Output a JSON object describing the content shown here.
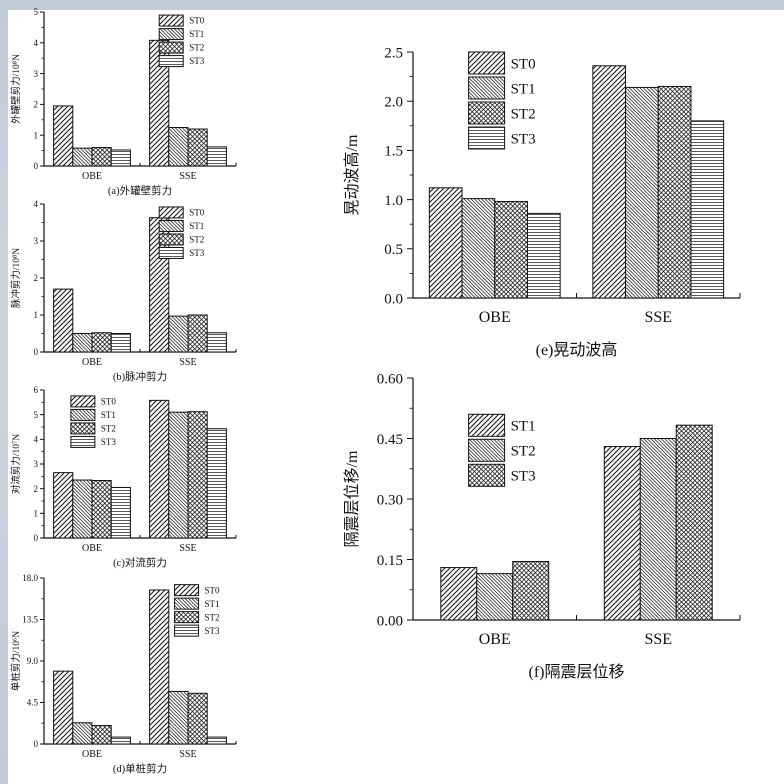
{
  "page": {
    "top_band_color": "#c2ccd9",
    "left_band_color": "#ccd5e0",
    "canvas_color": "#ffffff",
    "ink_color": "#111111"
  },
  "chart_data": [
    {
      "id": "a",
      "type": "bar",
      "caption": "(a)外罐壁剪力",
      "ylabel": "外罐壁剪力/10⁸N",
      "categories": [
        "OBE",
        "SSE"
      ],
      "series": [
        {
          "name": "ST0",
          "values": [
            1.95,
            4.08
          ]
        },
        {
          "name": "ST1",
          "values": [
            0.58,
            1.25
          ]
        },
        {
          "name": "ST2",
          "values": [
            0.6,
            1.2
          ]
        },
        {
          "name": "ST3",
          "values": [
            0.52,
            0.62
          ]
        }
      ],
      "ylim": [
        0,
        5
      ],
      "ytick_values": [
        0,
        1,
        2,
        3,
        4,
        5
      ],
      "ytick_labels": [
        "0",
        "1",
        "2",
        "3",
        "4",
        "5"
      ],
      "legend_pos": {
        "x": 0.6,
        "y": 0.02
      },
      "legend_position_hint": "upper-right-inside",
      "grid": false,
      "hatches": [
        "diag-forward",
        "diag-back",
        "cross",
        "horizontal"
      ]
    },
    {
      "id": "b",
      "type": "bar",
      "caption": "(b)脉冲剪力",
      "ylabel": "脉冲剪力/10⁸N",
      "categories": [
        "OBE",
        "SSE"
      ],
      "series": [
        {
          "name": "ST0",
          "values": [
            1.7,
            3.63
          ]
        },
        {
          "name": "ST1",
          "values": [
            0.5,
            0.97
          ]
        },
        {
          "name": "ST2",
          "values": [
            0.52,
            1.0
          ]
        },
        {
          "name": "ST3",
          "values": [
            0.5,
            0.52
          ]
        }
      ],
      "ylim": [
        0,
        4
      ],
      "ytick_values": [
        0,
        1,
        2,
        3,
        4
      ],
      "ytick_labels": [
        "0",
        "1",
        "2",
        "3",
        "4"
      ],
      "legend_pos": {
        "x": 0.6,
        "y": 0.02
      },
      "legend_position_hint": "upper-right-inside",
      "grid": false,
      "hatches": [
        "diag-forward",
        "diag-back",
        "cross",
        "horizontal"
      ]
    },
    {
      "id": "c",
      "type": "bar",
      "caption": "(c)对流剪力",
      "ylabel": "对流剪力/10⁷N",
      "categories": [
        "OBE",
        "SSE"
      ],
      "series": [
        {
          "name": "ST0",
          "values": [
            2.65,
            5.58
          ]
        },
        {
          "name": "ST1",
          "values": [
            2.35,
            5.1
          ]
        },
        {
          "name": "ST2",
          "values": [
            2.33,
            5.12
          ]
        },
        {
          "name": "ST3",
          "values": [
            2.05,
            4.43
          ]
        }
      ],
      "ylim": [
        0,
        6
      ],
      "ytick_values": [
        0,
        1,
        2,
        3,
        4,
        5,
        6
      ],
      "ytick_labels": [
        "0",
        "1",
        "2",
        "3",
        "4",
        "5",
        "6"
      ],
      "legend_pos": {
        "x": 0.14,
        "y": 0.04
      },
      "legend_position_hint": "upper-left-inside",
      "grid": false,
      "hatches": [
        "diag-forward",
        "diag-back",
        "cross",
        "horizontal"
      ]
    },
    {
      "id": "d",
      "type": "bar",
      "caption": "(d)单桩剪力",
      "ylabel": "单桩剪力/10⁶N",
      "categories": [
        "OBE",
        "SSE"
      ],
      "series": [
        {
          "name": "ST0",
          "values": [
            7.9,
            16.7
          ]
        },
        {
          "name": "ST1",
          "values": [
            2.3,
            5.7
          ]
        },
        {
          "name": "ST2",
          "values": [
            2.0,
            5.5
          ]
        },
        {
          "name": "ST3",
          "values": [
            0.75,
            0.75
          ]
        }
      ],
      "ylim": [
        0,
        18
      ],
      "ytick_values": [
        0,
        4.5,
        9,
        13.5,
        18
      ],
      "ytick_labels": [
        "0",
        "4.5",
        "9.0",
        "13.5",
        "18.0"
      ],
      "legend_pos": {
        "x": 0.68,
        "y": 0.04
      },
      "legend_position_hint": "upper-right-inside",
      "grid": false,
      "hatches": [
        "diag-forward",
        "diag-back",
        "cross",
        "horizontal"
      ]
    },
    {
      "id": "e",
      "type": "bar",
      "caption": "(e)晃动波高",
      "ylabel": "晃动波高/m",
      "categories": [
        "OBE",
        "SSE"
      ],
      "series": [
        {
          "name": "ST0",
          "values": [
            1.12,
            2.36
          ]
        },
        {
          "name": "ST1",
          "values": [
            1.01,
            2.14
          ]
        },
        {
          "name": "ST2",
          "values": [
            0.98,
            2.15
          ]
        },
        {
          "name": "ST3",
          "values": [
            0.86,
            1.8
          ]
        }
      ],
      "ylim": [
        0,
        2.5
      ],
      "ytick_values": [
        0,
        0.5,
        1.0,
        1.5,
        2.0,
        2.5
      ],
      "ytick_labels": [
        "0.0",
        "0.5",
        "1.0",
        "1.5",
        "2.0",
        "2.5"
      ],
      "legend_pos": {
        "x": 0.17,
        "y": 0.0
      },
      "legend_position_hint": "upper-left-inside",
      "grid": false,
      "hatches": [
        "diag-forward",
        "diag-back",
        "cross",
        "horizontal"
      ]
    },
    {
      "id": "f",
      "type": "bar",
      "caption": "(f)隔震层位移",
      "ylabel": "隔震层位移/m",
      "categories": [
        "OBE",
        "SSE"
      ],
      "series": [
        {
          "name": "ST1",
          "values": [
            0.13,
            0.43
          ]
        },
        {
          "name": "ST2",
          "values": [
            0.115,
            0.45
          ]
        },
        {
          "name": "ST3",
          "values": [
            0.145,
            0.483
          ]
        }
      ],
      "ylim": [
        0,
        0.6
      ],
      "ytick_values": [
        0,
        0.15,
        0.3,
        0.45,
        0.6
      ],
      "ytick_labels": [
        "0.00",
        "0.15",
        "0.30",
        "0.45",
        "0.60"
      ],
      "legend_pos": {
        "x": 0.17,
        "y": 0.15
      },
      "legend_position_hint": "upper-left-inside",
      "grid": false,
      "hatches": [
        "diag-forward",
        "diag-back",
        "cross",
        "horizontal"
      ]
    }
  ]
}
